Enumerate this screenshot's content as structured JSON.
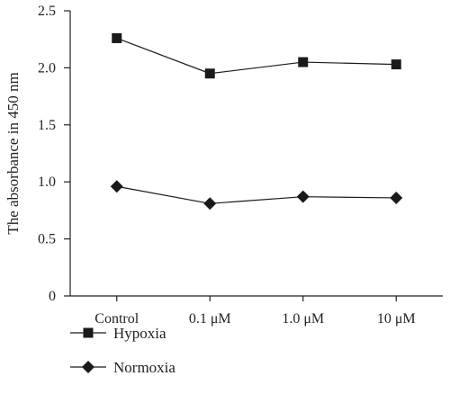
{
  "chart_data": {
    "type": "line",
    "categories": [
      "Control",
      "0.1 μM",
      "1.0 μM",
      "10 μM"
    ],
    "ylabel": "The absorbance in 450 nm",
    "xlabel": "",
    "ylim": [
      0,
      2.5
    ],
    "yticks": [
      "0",
      "0.5",
      "1.0",
      "1.5",
      "2.0",
      "2.5"
    ],
    "grid": false,
    "legend_position": "bottom-left",
    "series": [
      {
        "name": "Hypoxia",
        "marker": "square",
        "color": "#1a1a1a",
        "values": [
          2.26,
          1.95,
          2.05,
          2.03
        ]
      },
      {
        "name": "Normoxia",
        "marker": "diamond",
        "color": "#1a1a1a",
        "values": [
          0.96,
          0.81,
          0.87,
          0.86
        ]
      }
    ]
  }
}
